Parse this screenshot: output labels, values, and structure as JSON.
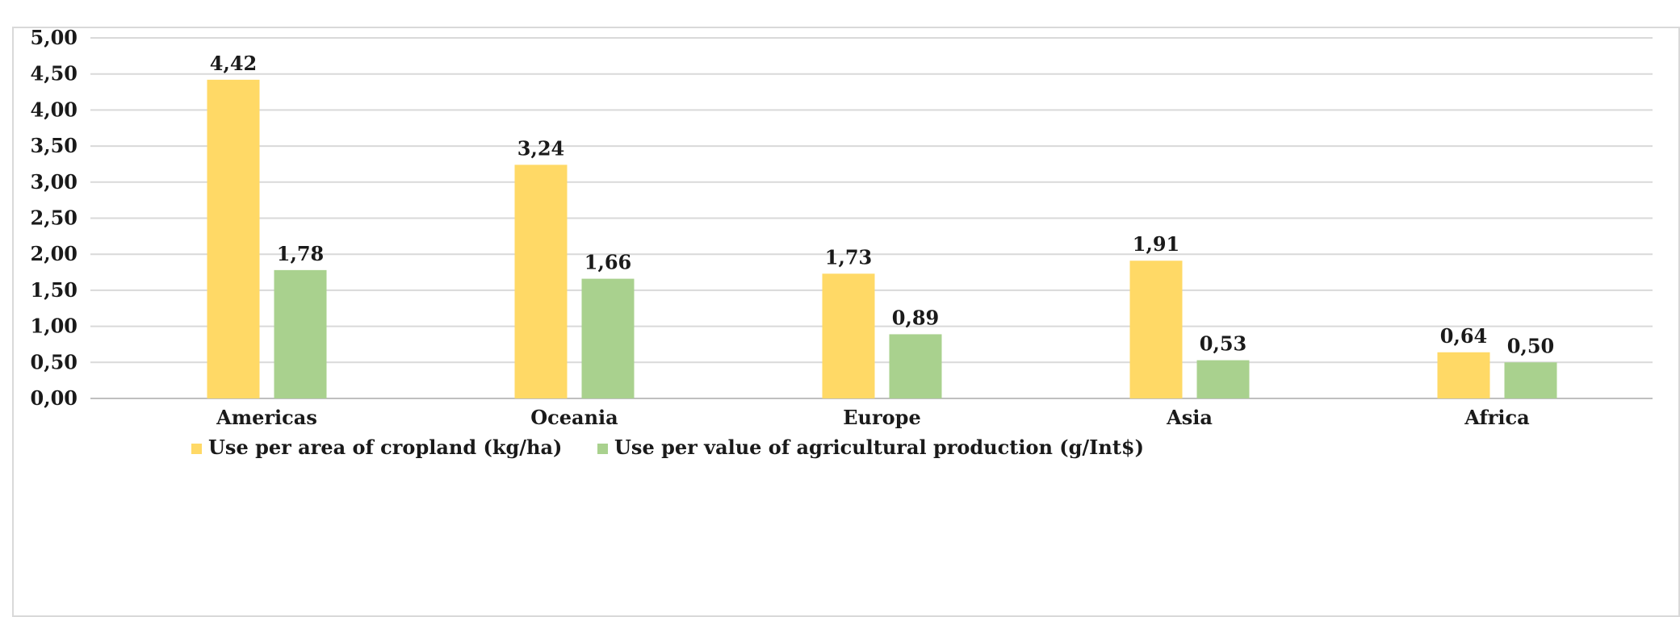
{
  "chart_data": {
    "type": "bar",
    "title": "",
    "xlabel": "",
    "ylabel": "",
    "categories": [
      "Americas",
      "Oceania",
      "Europe",
      "Asia",
      "Africa"
    ],
    "series": [
      {
        "name": "Use per area of cropland (kg/ha)",
        "color": "#ffd966",
        "values": [
          4.42,
          3.24,
          1.73,
          1.91,
          0.64
        ],
        "labels": [
          "4,42",
          "3,24",
          "1,73",
          "1,91",
          "0,64"
        ]
      },
      {
        "name": "Use per value of agricultural production (g/Int$)",
        "color": "#a9d18e",
        "values": [
          1.78,
          1.66,
          0.89,
          0.53,
          0.5
        ],
        "labels": [
          "1,78",
          "1,66",
          "0,89",
          "0,53",
          "0,50"
        ]
      }
    ],
    "ylim": [
      0,
      5
    ],
    "yticks": [
      0,
      0.5,
      1,
      1.5,
      2,
      2.5,
      3,
      3.5,
      4,
      4.5,
      5
    ],
    "ytick_labels": [
      "0,00",
      "0,50",
      "1,00",
      "1,50",
      "2,00",
      "2,50",
      "3,00",
      "3,50",
      "4,00",
      "4,50",
      "5,00"
    ],
    "grid": true,
    "legend_position": "bottom"
  }
}
